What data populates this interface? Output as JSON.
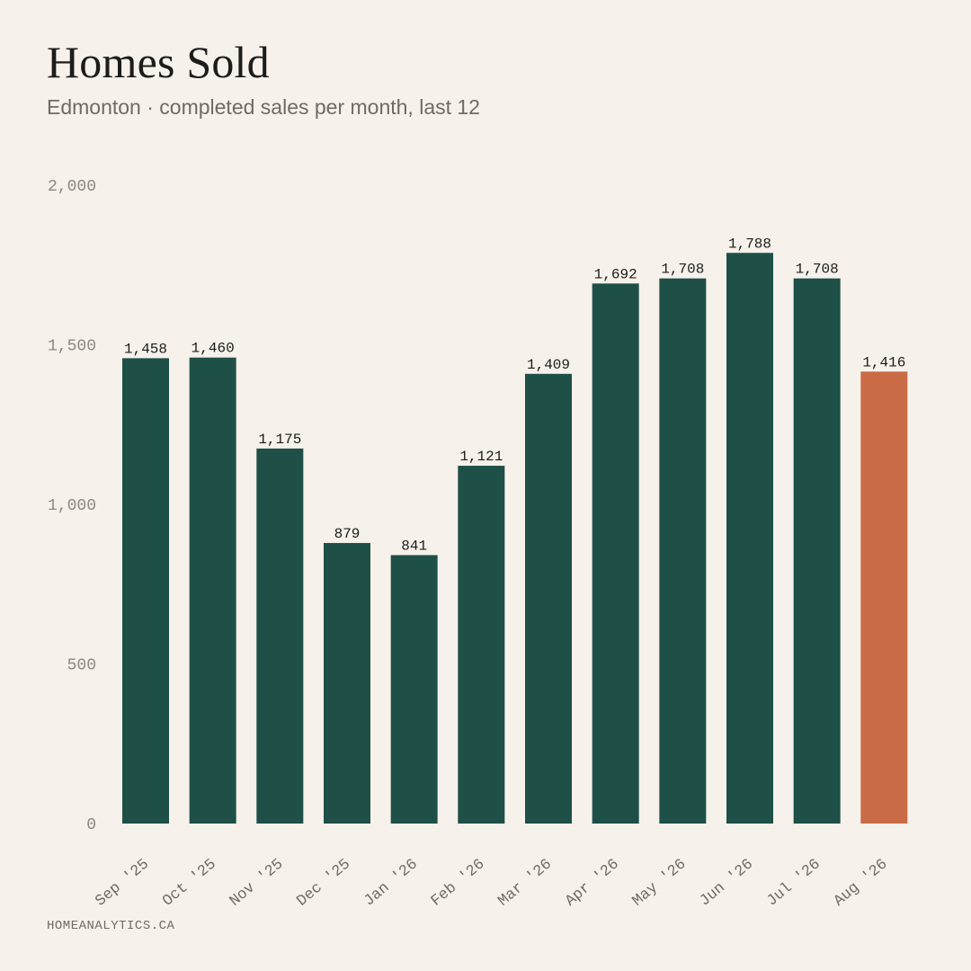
{
  "header": {
    "title": "Homes Sold",
    "subtitle": "Edmonton · completed sales per month, last 12"
  },
  "footer": {
    "source": "HOMEANALYTICS.CA"
  },
  "colors": {
    "background": "#f6f1eb",
    "bar": "#1e5047",
    "highlight": "#c96b45"
  },
  "chart_data": {
    "type": "bar",
    "title": "Homes Sold",
    "subtitle": "Edmonton · completed sales per month, last 12",
    "xlabel": "",
    "ylabel": "",
    "categories": [
      "Sep '25",
      "Oct '25",
      "Nov '25",
      "Dec '25",
      "Jan '26",
      "Feb '26",
      "Mar '26",
      "Apr '26",
      "May '26",
      "Jun '26",
      "Jul '26",
      "Aug '26"
    ],
    "values": [
      1458,
      1460,
      1175,
      879,
      841,
      1121,
      1409,
      1692,
      1708,
      1788,
      1708,
      1416
    ],
    "value_labels": [
      "1,458",
      "1,460",
      "1,175",
      "879",
      "841",
      "1,121",
      "1,409",
      "1,692",
      "1,708",
      "1,788",
      "1,708",
      "1,416"
    ],
    "highlight_category": "Aug '26",
    "ylim": [
      0,
      2000
    ],
    "yticks": [
      0,
      500,
      1000,
      1500,
      2000
    ],
    "ytick_labels": [
      "0",
      "500",
      "1,000",
      "1,500",
      "2,000"
    ],
    "grid": false,
    "legend": "none"
  }
}
